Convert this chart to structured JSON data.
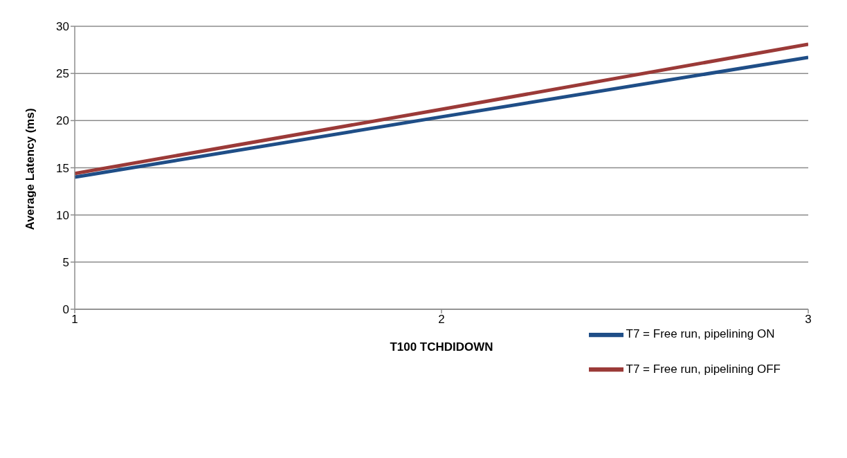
{
  "chart_data": {
    "type": "line",
    "xlabel": "T100 TCHDIDOWN",
    "ylabel": "Average Latency (ms)",
    "x": [
      1,
      2,
      3
    ],
    "series": [
      {
        "name": "T7 = Free run, pipelining ON",
        "color": "#1f4e87",
        "values": [
          14.0,
          20.4,
          26.7
        ]
      },
      {
        "name": "T7 = Free run, pipelining OFF",
        "color": "#9b3a38",
        "values": [
          14.4,
          21.2,
          28.1
        ]
      }
    ],
    "xlim": [
      1,
      3
    ],
    "xticks": [
      1,
      2,
      3
    ],
    "ylim": [
      0,
      30
    ],
    "yticks": [
      0,
      5,
      10,
      15,
      20,
      25,
      30
    ],
    "grid": "y",
    "legend": "bottom right",
    "marker": "none",
    "line_style": "solid"
  }
}
